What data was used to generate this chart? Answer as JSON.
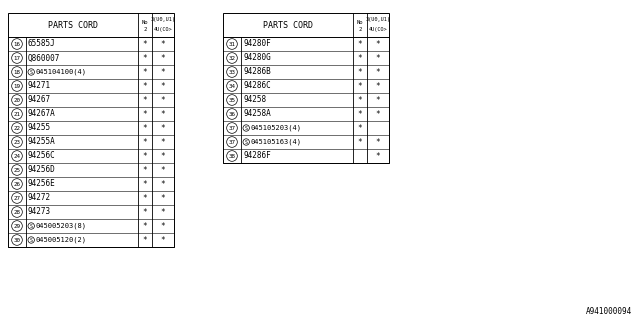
{
  "watermark": "A941000094",
  "left_table": {
    "rows": [
      {
        "num": "16",
        "part": "65585J",
        "has_S": false,
        "c2": true,
        "c3": true
      },
      {
        "num": "17",
        "part": "Q860007",
        "has_S": false,
        "c2": true,
        "c3": true
      },
      {
        "num": "18",
        "part": "045104100(4)",
        "has_S": true,
        "c2": true,
        "c3": true
      },
      {
        "num": "19",
        "part": "94271",
        "has_S": false,
        "c2": true,
        "c3": true
      },
      {
        "num": "20",
        "part": "94267",
        "has_S": false,
        "c2": true,
        "c3": true
      },
      {
        "num": "21",
        "part": "94267A",
        "has_S": false,
        "c2": true,
        "c3": true
      },
      {
        "num": "22",
        "part": "94255",
        "has_S": false,
        "c2": true,
        "c3": true
      },
      {
        "num": "23",
        "part": "94255A",
        "has_S": false,
        "c2": true,
        "c3": true
      },
      {
        "num": "24",
        "part": "94256C",
        "has_S": false,
        "c2": true,
        "c3": true
      },
      {
        "num": "25",
        "part": "94256D",
        "has_S": false,
        "c2": true,
        "c3": true
      },
      {
        "num": "26",
        "part": "94256E",
        "has_S": false,
        "c2": true,
        "c3": true
      },
      {
        "num": "27",
        "part": "94272",
        "has_S": false,
        "c2": true,
        "c3": true
      },
      {
        "num": "28",
        "part": "94273",
        "has_S": false,
        "c2": true,
        "c3": true
      },
      {
        "num": "29",
        "part": "045005203(8)",
        "has_S": true,
        "c2": true,
        "c3": true
      },
      {
        "num": "30",
        "part": "045005120(2)",
        "has_S": true,
        "c2": true,
        "c3": true
      }
    ]
  },
  "right_table": {
    "rows": [
      {
        "num": "31",
        "part": "94280F",
        "has_S": false,
        "c2": true,
        "c3": true
      },
      {
        "num": "32",
        "part": "94280G",
        "has_S": false,
        "c2": true,
        "c3": true
      },
      {
        "num": "33",
        "part": "94286B",
        "has_S": false,
        "c2": true,
        "c3": true
      },
      {
        "num": "34",
        "part": "94286C",
        "has_S": false,
        "c2": true,
        "c3": true
      },
      {
        "num": "35",
        "part": "94258",
        "has_S": false,
        "c2": true,
        "c3": true
      },
      {
        "num": "36",
        "part": "94258A",
        "has_S": false,
        "c2": true,
        "c3": true
      },
      {
        "num": "37",
        "part": "045105203(4)",
        "has_S": true,
        "c2": true,
        "c3": false
      },
      {
        "num": "37",
        "part": "045105163(4)",
        "has_S": true,
        "c2": true,
        "c3": true
      },
      {
        "num": "38",
        "part": "94286F",
        "has_S": false,
        "c2": false,
        "c3": true
      }
    ]
  },
  "bg_color": "#ffffff",
  "line_color": "#000000",
  "text_color": "#000000"
}
